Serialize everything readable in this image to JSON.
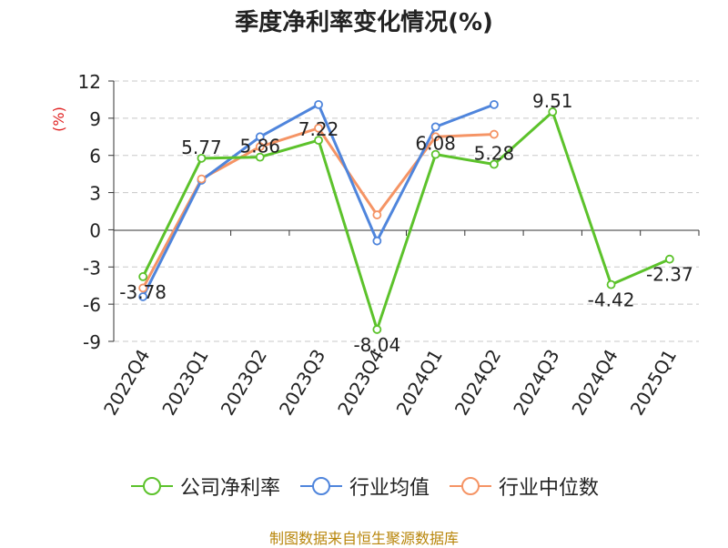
{
  "chart_data": {
    "type": "line",
    "title": "季度净利率变化情况(%)",
    "ylabel": "(%)",
    "ylim": [
      -9,
      12
    ],
    "yticks": [
      -9,
      -6,
      -3,
      0,
      3,
      6,
      9,
      12
    ],
    "categories": [
      "2022Q4",
      "2023Q1",
      "2023Q2",
      "2023Q3",
      "2023Q4",
      "2024Q1",
      "2024Q2",
      "2024Q3",
      "2024Q4",
      "2025Q1"
    ],
    "grid": true,
    "legend_position": "bottom",
    "series": [
      {
        "name": "公司净利率",
        "color": "#5cc22b",
        "labeled": true,
        "values": [
          -3.78,
          5.77,
          5.86,
          7.22,
          -8.04,
          6.08,
          5.28,
          9.51,
          -4.42,
          -2.37
        ]
      },
      {
        "name": "行业均值",
        "color": "#4f85dc",
        "labeled": false,
        "values": [
          -5.4,
          4.0,
          7.5,
          10.1,
          -0.9,
          8.3,
          10.1,
          null,
          null,
          null
        ]
      },
      {
        "name": "行业中位数",
        "color": "#f59465",
        "labeled": false,
        "values": [
          -4.7,
          4.1,
          6.7,
          8.2,
          1.2,
          7.5,
          7.7,
          null,
          null,
          null
        ]
      }
    ]
  },
  "source": "制图数据来自恒生聚源数据库"
}
